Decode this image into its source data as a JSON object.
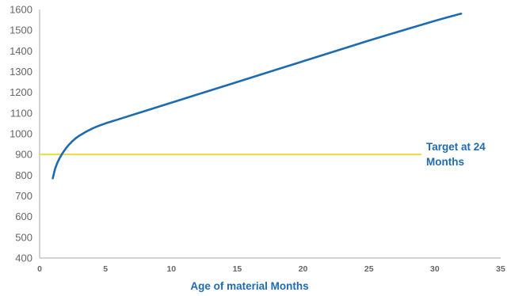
{
  "chart_data": {
    "type": "line",
    "title": "",
    "xlabel": "Age of material Months",
    "ylabel": "",
    "xlim": [
      0,
      35
    ],
    "ylim": [
      400,
      1600
    ],
    "x_ticks": [
      "0",
      "5",
      "10",
      "15",
      "20",
      "25",
      "30",
      "35"
    ],
    "y_ticks": [
      "400",
      "500",
      "600",
      "700",
      "800",
      "900",
      "1000",
      "1100",
      "1200",
      "1300",
      "1400",
      "1500",
      "1600"
    ],
    "grid": false,
    "series": [
      {
        "color": "#1f6bb0",
        "x": [
          1,
          1.2,
          1.5,
          2,
          2.5,
          3,
          4,
          5,
          6,
          8,
          10,
          12,
          15,
          20,
          25,
          30,
          32
        ],
        "y": [
          785,
          835,
          880,
          930,
          965,
          990,
          1025,
          1050,
          1070,
          1110,
          1150,
          1190,
          1250,
          1350,
          1450,
          1545,
          1580
        ]
      }
    ],
    "target_line": {
      "y": 900,
      "x_range": [
        0,
        29
      ],
      "color": "#e8dc3c",
      "label": "Target at 24 Months",
      "label_lines": [
        "Target at 24",
        "Months"
      ],
      "label_color": "#1f6bb0"
    },
    "axis_color": "#aaaaaa",
    "label_color": "#1f6bb0"
  }
}
